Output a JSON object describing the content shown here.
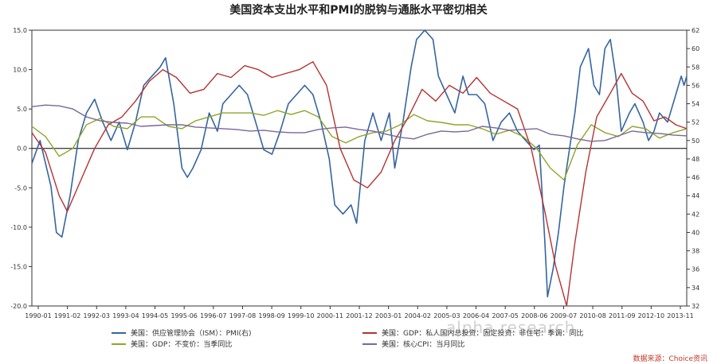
{
  "chart_data": {
    "type": "line",
    "title": "美国资本支出水平和PMI的脱钩与通胀水平密切相关",
    "x_ticks": [
      "1990-01",
      "1991-02",
      "1992-03",
      "1993-04",
      "1994-05",
      "1995-06",
      "1996-07",
      "1997-08",
      "1998-09",
      "1999-10",
      "2000-11",
      "2001-12",
      "2003-01",
      "2004-02",
      "2005-03",
      "2006-04",
      "2007-05",
      "2008-06",
      "2009-07",
      "2010-08",
      "2011-09",
      "2012-10",
      "2013-11"
    ],
    "x_range": [
      1990.0,
      2014.0
    ],
    "left_axis": {
      "ylim": [
        -20,
        15
      ],
      "ticks": [
        "-20.0",
        "-15.0",
        "-10.0",
        "-5.0",
        "0.0",
        "5.0",
        "10.0",
        "15.0"
      ]
    },
    "right_axis": {
      "ylim": [
        32,
        62
      ],
      "ticks": [
        "32",
        "34",
        "36",
        "38",
        "40",
        "42",
        "44",
        "46",
        "48",
        "50",
        "52",
        "54",
        "56",
        "58",
        "60",
        "62"
      ]
    },
    "grid": false,
    "legend_position": "bottom",
    "series": [
      {
        "name": "美国：供应管理协会（ISM）：PMI(右)",
        "axis": "right",
        "color": "#3565a0",
        "points": [
          [
            1990.0,
            47.5
          ],
          [
            1990.3,
            50
          ],
          [
            1990.7,
            45
          ],
          [
            1990.9,
            40
          ],
          [
            1991.1,
            39.5
          ],
          [
            1991.4,
            44
          ],
          [
            1991.7,
            50
          ],
          [
            1992.0,
            53
          ],
          [
            1992.3,
            54.5
          ],
          [
            1992.6,
            52
          ],
          [
            1992.9,
            50
          ],
          [
            1993.2,
            52
          ],
          [
            1993.5,
            49
          ],
          [
            1993.8,
            52
          ],
          [
            1994.1,
            56
          ],
          [
            1994.4,
            57
          ],
          [
            1994.7,
            58
          ],
          [
            1994.9,
            59
          ],
          [
            1995.2,
            54
          ],
          [
            1995.5,
            47
          ],
          [
            1995.7,
            46
          ],
          [
            1995.9,
            47
          ],
          [
            1996.2,
            49
          ],
          [
            1996.5,
            53
          ],
          [
            1996.8,
            51
          ],
          [
            1997.0,
            54
          ],
          [
            1997.3,
            55
          ],
          [
            1997.6,
            56
          ],
          [
            1997.9,
            55
          ],
          [
            1998.2,
            52
          ],
          [
            1998.5,
            49
          ],
          [
            1998.8,
            48.5
          ],
          [
            1999.1,
            51
          ],
          [
            1999.4,
            54
          ],
          [
            1999.7,
            55
          ],
          [
            2000.0,
            56
          ],
          [
            2000.3,
            55
          ],
          [
            2000.6,
            52
          ],
          [
            2000.9,
            48
          ],
          [
            2001.1,
            43
          ],
          [
            2001.4,
            42
          ],
          [
            2001.7,
            43
          ],
          [
            2001.9,
            41
          ],
          [
            2002.2,
            50
          ],
          [
            2002.5,
            53
          ],
          [
            2002.8,
            50
          ],
          [
            2003.1,
            53
          ],
          [
            2003.3,
            47
          ],
          [
            2003.6,
            52
          ],
          [
            2003.9,
            58
          ],
          [
            2004.1,
            61
          ],
          [
            2004.4,
            62
          ],
          [
            2004.7,
            61
          ],
          [
            2004.9,
            57
          ],
          [
            2005.2,
            55
          ],
          [
            2005.5,
            53
          ],
          [
            2005.8,
            57
          ],
          [
            2006.0,
            55
          ],
          [
            2006.3,
            55
          ],
          [
            2006.6,
            54
          ],
          [
            2006.9,
            50
          ],
          [
            2007.2,
            52
          ],
          [
            2007.5,
            53
          ],
          [
            2007.8,
            51
          ],
          [
            2008.1,
            50
          ],
          [
            2008.4,
            49
          ],
          [
            2008.6,
            49.5
          ],
          [
            2008.8,
            39
          ],
          [
            2008.9,
            33
          ],
          [
            2009.1,
            36
          ],
          [
            2009.3,
            40
          ],
          [
            2009.5,
            45
          ],
          [
            2009.7,
            49
          ],
          [
            2009.9,
            53
          ],
          [
            2010.1,
            58
          ],
          [
            2010.4,
            60
          ],
          [
            2010.6,
            56
          ],
          [
            2010.8,
            55
          ],
          [
            2011.0,
            60
          ],
          [
            2011.2,
            61
          ],
          [
            2011.4,
            57
          ],
          [
            2011.6,
            51
          ],
          [
            2011.9,
            53
          ],
          [
            2012.1,
            54
          ],
          [
            2012.4,
            52
          ],
          [
            2012.6,
            50
          ],
          [
            2012.8,
            51
          ],
          [
            2013.0,
            53
          ],
          [
            2013.3,
            52
          ],
          [
            2013.6,
            55
          ],
          [
            2013.8,
            57
          ],
          [
            2013.9,
            56
          ],
          [
            2014.0,
            57
          ]
        ]
      },
      {
        "name": "美国：GDP：不变价：当季同比",
        "axis": "left",
        "color": "#8fa529",
        "points": [
          [
            1990.0,
            2.8
          ],
          [
            1990.5,
            1.5
          ],
          [
            1991.0,
            -1.0
          ],
          [
            1991.5,
            0.0
          ],
          [
            1992.0,
            3.0
          ],
          [
            1992.5,
            3.8
          ],
          [
            1993.0,
            2.8
          ],
          [
            1993.5,
            2.5
          ],
          [
            1994.0,
            4.0
          ],
          [
            1994.5,
            4.0
          ],
          [
            1995.0,
            2.8
          ],
          [
            1995.5,
            2.5
          ],
          [
            1996.0,
            3.5
          ],
          [
            1996.5,
            4.0
          ],
          [
            1997.0,
            4.5
          ],
          [
            1997.5,
            4.5
          ],
          [
            1998.0,
            4.5
          ],
          [
            1998.5,
            4.2
          ],
          [
            1999.0,
            4.8
          ],
          [
            1999.5,
            4.3
          ],
          [
            2000.0,
            4.8
          ],
          [
            2000.5,
            4.0
          ],
          [
            2001.0,
            1.5
          ],
          [
            2001.5,
            0.7
          ],
          [
            2002.0,
            1.5
          ],
          [
            2002.5,
            2.0
          ],
          [
            2003.0,
            2.2
          ],
          [
            2003.5,
            3.0
          ],
          [
            2004.0,
            4.3
          ],
          [
            2004.5,
            3.5
          ],
          [
            2005.0,
            3.3
          ],
          [
            2005.5,
            3.0
          ],
          [
            2006.0,
            3.0
          ],
          [
            2006.5,
            2.5
          ],
          [
            2007.0,
            1.8
          ],
          [
            2007.5,
            2.3
          ],
          [
            2008.0,
            1.5
          ],
          [
            2008.5,
            0.0
          ],
          [
            2009.0,
            -2.5
          ],
          [
            2009.5,
            -4.0
          ],
          [
            2010.0,
            0.5
          ],
          [
            2010.5,
            3.0
          ],
          [
            2011.0,
            2.0
          ],
          [
            2011.5,
            1.5
          ],
          [
            2012.0,
            2.8
          ],
          [
            2012.5,
            2.5
          ],
          [
            2013.0,
            1.3
          ],
          [
            2013.5,
            2.0
          ],
          [
            2014.0,
            2.5
          ]
        ]
      },
      {
        "name": "美国：GDP：私人国内总投资：固定投资：非住宅：季调：同比",
        "axis": "left",
        "color": "#b53232",
        "points": [
          [
            1990.0,
            2.0
          ],
          [
            1990.5,
            -0.5
          ],
          [
            1991.0,
            -6.0
          ],
          [
            1991.3,
            -8.0
          ],
          [
            1991.8,
            -4.0
          ],
          [
            1992.3,
            0.0
          ],
          [
            1992.8,
            3.0
          ],
          [
            1993.3,
            4.0
          ],
          [
            1993.8,
            6.0
          ],
          [
            1994.3,
            8.5
          ],
          [
            1994.8,
            10.0
          ],
          [
            1995.3,
            9.0
          ],
          [
            1995.8,
            7.0
          ],
          [
            1996.3,
            7.5
          ],
          [
            1996.8,
            9.5
          ],
          [
            1997.3,
            9.0
          ],
          [
            1997.8,
            10.5
          ],
          [
            1998.3,
            10.0
          ],
          [
            1998.8,
            9.0
          ],
          [
            1999.3,
            9.5
          ],
          [
            1999.8,
            10.0
          ],
          [
            2000.3,
            11.0
          ],
          [
            2000.8,
            8.0
          ],
          [
            2001.3,
            0.0
          ],
          [
            2001.8,
            -4.0
          ],
          [
            2002.3,
            -5.0
          ],
          [
            2002.8,
            -3.0
          ],
          [
            2003.3,
            1.0
          ],
          [
            2003.8,
            4.0
          ],
          [
            2004.3,
            7.5
          ],
          [
            2004.8,
            6.0
          ],
          [
            2005.3,
            8.0
          ],
          [
            2005.8,
            7.0
          ],
          [
            2006.3,
            9.0
          ],
          [
            2006.8,
            7.0
          ],
          [
            2007.3,
            6.0
          ],
          [
            2007.8,
            5.0
          ],
          [
            2008.3,
            0.0
          ],
          [
            2008.8,
            -8.0
          ],
          [
            2009.2,
            -15.0
          ],
          [
            2009.6,
            -20.0
          ],
          [
            2009.9,
            -12.0
          ],
          [
            2010.3,
            -3.0
          ],
          [
            2010.7,
            4.0
          ],
          [
            2011.2,
            7.0
          ],
          [
            2011.6,
            9.5
          ],
          [
            2012.0,
            7.0
          ],
          [
            2012.4,
            6.0
          ],
          [
            2012.8,
            3.5
          ],
          [
            2013.2,
            4.0
          ],
          [
            2013.6,
            3.0
          ],
          [
            2014.0,
            2.5
          ]
        ]
      },
      {
        "name": "美国：核心CPI：当月同比",
        "axis": "left",
        "color": "#7a6699",
        "points": [
          [
            1990.0,
            5.3
          ],
          [
            1990.5,
            5.5
          ],
          [
            1991.0,
            5.4
          ],
          [
            1991.5,
            5.0
          ],
          [
            1992.0,
            4.0
          ],
          [
            1992.5,
            3.5
          ],
          [
            1993.0,
            3.3
          ],
          [
            1993.5,
            3.2
          ],
          [
            1994.0,
            2.8
          ],
          [
            1994.5,
            2.9
          ],
          [
            1995.0,
            3.0
          ],
          [
            1995.5,
            3.0
          ],
          [
            1996.0,
            2.7
          ],
          [
            1996.5,
            2.6
          ],
          [
            1997.0,
            2.5
          ],
          [
            1997.5,
            2.4
          ],
          [
            1998.0,
            2.2
          ],
          [
            1998.5,
            2.3
          ],
          [
            1999.0,
            2.1
          ],
          [
            1999.5,
            2.0
          ],
          [
            2000.0,
            2.0
          ],
          [
            2000.5,
            2.4
          ],
          [
            2001.0,
            2.6
          ],
          [
            2001.5,
            2.7
          ],
          [
            2002.0,
            2.4
          ],
          [
            2002.5,
            2.2
          ],
          [
            2003.0,
            1.8
          ],
          [
            2003.5,
            1.4
          ],
          [
            2004.0,
            1.2
          ],
          [
            2004.5,
            1.8
          ],
          [
            2005.0,
            2.2
          ],
          [
            2005.5,
            2.1
          ],
          [
            2006.0,
            2.2
          ],
          [
            2006.5,
            2.8
          ],
          [
            2007.0,
            2.6
          ],
          [
            2007.5,
            2.3
          ],
          [
            2008.0,
            2.4
          ],
          [
            2008.5,
            2.5
          ],
          [
            2009.0,
            1.8
          ],
          [
            2009.5,
            1.6
          ],
          [
            2010.0,
            1.2
          ],
          [
            2010.5,
            0.9
          ],
          [
            2011.0,
            1.0
          ],
          [
            2011.5,
            1.6
          ],
          [
            2012.0,
            2.2
          ],
          [
            2012.5,
            2.0
          ],
          [
            2013.0,
            1.9
          ],
          [
            2013.5,
            1.7
          ],
          [
            2014.0,
            1.6
          ]
        ]
      }
    ]
  },
  "source_label": "数据来源：Choice资讯",
  "watermark_text": "alpha research"
}
